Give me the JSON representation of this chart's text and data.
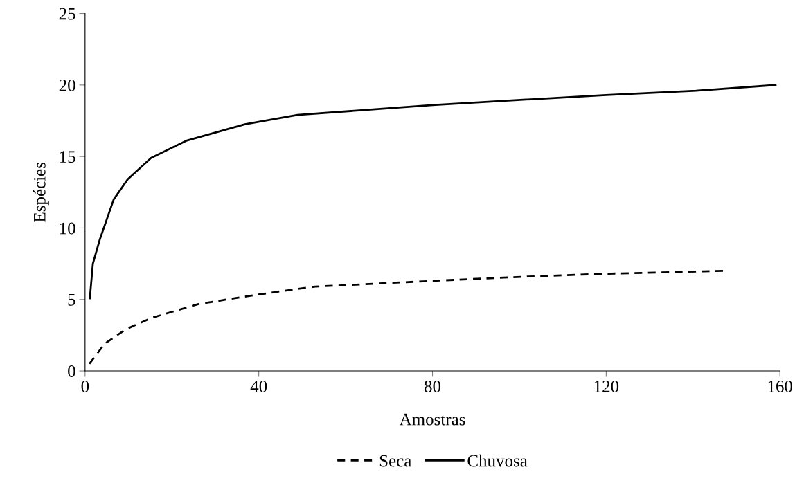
{
  "chart_data": {
    "type": "line",
    "xlabel": "Amostras",
    "ylabel": "Espécies",
    "xlim": [
      0,
      160
    ],
    "ylim": [
      0,
      25
    ],
    "xticks": [
      0,
      40,
      80,
      120,
      160
    ],
    "yticks": [
      0,
      5,
      10,
      15,
      20,
      25
    ],
    "grid": false,
    "legend": "bottom",
    "marker": "none",
    "series": [
      {
        "name": "Seca",
        "color": "#000000",
        "line_style": "dashed",
        "x": [
          1,
          4.5,
          9.3,
          15.2,
          26,
          36.7,
          44.5,
          53,
          80,
          101.7,
          120,
          147
        ],
        "values": [
          0.5,
          1.9,
          2.9,
          3.7,
          4.67,
          5.2,
          5.55,
          5.9,
          6.3,
          6.6,
          6.8,
          7.0
        ]
      },
      {
        "name": "Chuvosa",
        "color": "#000000",
        "line_style": "solid",
        "x": [
          1.1,
          1.8,
          3.4,
          6.6,
          9.8,
          15.2,
          23.3,
          36.8,
          48.9,
          80,
          120,
          140.7,
          159
        ],
        "values": [
          5.08,
          7.5,
          9.2,
          12.0,
          13.4,
          14.9,
          16.1,
          17.25,
          17.9,
          18.6,
          19.3,
          19.6,
          20.0
        ]
      }
    ]
  }
}
